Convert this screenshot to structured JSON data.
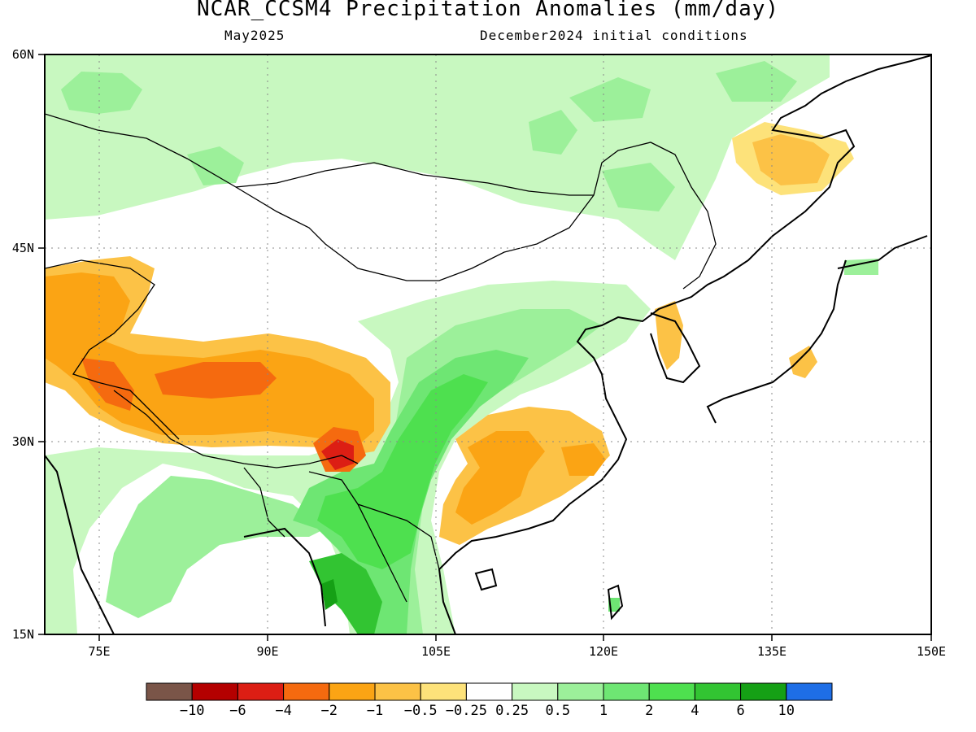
{
  "title": "NCAR_CCSM4 Precipitation Anomalies (mm/day)",
  "subtitle_left": "May2025",
  "subtitle_right": "December2024 initial conditions",
  "map": {
    "lon_range": [
      70,
      150
    ],
    "lat_range": [
      15,
      60
    ],
    "lon_ticks": [
      "75E",
      "90E",
      "105E",
      "120E",
      "135E",
      "150E"
    ],
    "lat_ticks": [
      "60N",
      "45N",
      "30N",
      "15N"
    ],
    "gridlines": "dotted"
  },
  "colorbar": {
    "colors": [
      "#7a5548",
      "#b40000",
      "#dc1e14",
      "#f56a0f",
      "#fba414",
      "#fcc246",
      "#fde27a",
      "#ffffff",
      "#c8f8c0",
      "#9cf09a",
      "#6ee673",
      "#4ee04f",
      "#32c432",
      "#15a015",
      "#1e6ee6"
    ],
    "labels": [
      "-10",
      "-6",
      "-4",
      "-2",
      "-1",
      "-0.5",
      "-0.25",
      "0.25",
      "0.5",
      "1",
      "2",
      "4",
      "6",
      "10"
    ]
  },
  "regions": [
    {
      "name": "tibet-dry",
      "level": -1
    },
    {
      "name": "east-china-dry",
      "level": -1
    },
    {
      "name": "southeast-asia-wet",
      "level": 2
    },
    {
      "name": "siberia-wet",
      "level": 0.5
    },
    {
      "name": "sakhalin-dry",
      "level": -0.5
    }
  ]
}
